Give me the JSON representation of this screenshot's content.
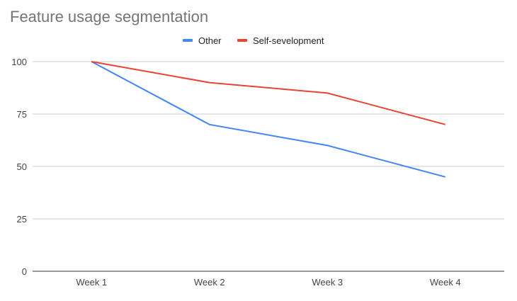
{
  "chart_data": {
    "type": "line",
    "title": "Feature usage segmentation",
    "xlabel": "",
    "ylabel": "",
    "categories": [
      "Week 1",
      "Week 2",
      "Week 3",
      "Week 4"
    ],
    "series": [
      {
        "name": "Other",
        "color": "#4285f4",
        "values": [
          100,
          70,
          60,
          45
        ]
      },
      {
        "name": "Self-sevelopment",
        "color": "#ea4335",
        "values": [
          100,
          90,
          85,
          70
        ]
      }
    ],
    "ylim": [
      0,
      100
    ],
    "yticks": [
      0,
      25,
      50,
      75,
      100
    ],
    "grid": true,
    "legend": "top-center"
  }
}
